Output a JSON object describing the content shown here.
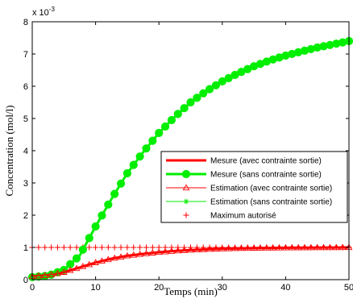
{
  "chart_data": {
    "type": "line",
    "xlabel": "Temps (min)",
    "ylabel": "Concentration (mol/l)",
    "y_exponent_label": "x 10",
    "y_exponent_power": "-3",
    "xlim": [
      0,
      50
    ],
    "ylim": [
      0,
      8
    ],
    "xticks": [
      "0",
      "10",
      "20",
      "30",
      "40",
      "50"
    ],
    "yticks": [
      "0",
      "1",
      "2",
      "3",
      "4",
      "5",
      "6",
      "7",
      "8"
    ],
    "grid": false,
    "legend_position": "right",
    "series": [
      {
        "name": "Mesure (avec contrainte sortie)",
        "color": "#ff0000",
        "style": "line-thick",
        "marker": "none",
        "x": [
          0,
          2.5,
          5,
          7.5,
          10,
          12.5,
          15,
          17.5,
          20,
          22.5,
          25,
          27.5,
          30,
          32.5,
          35,
          37.5,
          40,
          42.5,
          45,
          47.5,
          50
        ],
        "y": [
          0.1,
          0.14,
          0.23,
          0.38,
          0.53,
          0.65,
          0.74,
          0.8,
          0.85,
          0.89,
          0.92,
          0.94,
          0.96,
          0.97,
          0.98,
          0.985,
          0.99,
          0.993,
          0.996,
          0.998,
          1.0
        ]
      },
      {
        "name": "Mesure (sans contrainte sortie)",
        "color": "#00ee00",
        "style": "line-thick",
        "marker": "filled-circle",
        "x": [
          0,
          2.5,
          5,
          7.5,
          10,
          12.5,
          15,
          17.5,
          20,
          22.5,
          25,
          27.5,
          30,
          32.5,
          35,
          37.5,
          40,
          42.5,
          45,
          47.5,
          50
        ],
        "y": [
          0.08,
          0.12,
          0.3,
          0.75,
          1.65,
          2.5,
          3.3,
          3.95,
          4.55,
          5.05,
          5.5,
          5.85,
          6.15,
          6.4,
          6.62,
          6.8,
          6.95,
          7.08,
          7.2,
          7.3,
          7.4
        ]
      },
      {
        "name": "Estimation (avec contrainte sortie)",
        "color": "#ff0000",
        "style": "line-thin",
        "marker": "triangle",
        "x": [
          0,
          2.5,
          5,
          7.5,
          10,
          12.5,
          15,
          17.5,
          20,
          22.5,
          25,
          27.5,
          30,
          32.5,
          35,
          37.5,
          40,
          42.5,
          45,
          47.5,
          50
        ],
        "y": [
          0.1,
          0.14,
          0.23,
          0.38,
          0.53,
          0.65,
          0.74,
          0.8,
          0.85,
          0.89,
          0.92,
          0.94,
          0.96,
          0.97,
          0.98,
          0.985,
          0.99,
          0.993,
          0.996,
          0.998,
          1.0
        ]
      },
      {
        "name": "Estimation (sans contrainte sortie)",
        "color": "#00ee00",
        "style": "line-thin",
        "marker": "star",
        "x": [
          0,
          2.5,
          5,
          7.5,
          10,
          12.5,
          15,
          17.5,
          20,
          22.5,
          25,
          27.5,
          30,
          32.5,
          35,
          37.5,
          40,
          42.5,
          45,
          47.5,
          50
        ],
        "y": [
          0.08,
          0.12,
          0.3,
          0.75,
          1.65,
          2.5,
          3.3,
          3.95,
          4.55,
          5.05,
          5.5,
          5.85,
          6.15,
          6.4,
          6.62,
          6.8,
          6.95,
          7.08,
          7.2,
          7.3,
          7.4
        ]
      },
      {
        "name": "Maximum autorisé",
        "color": "#ff0000",
        "style": "none",
        "marker": "plus",
        "x": [
          0,
          2.5,
          5,
          7.5,
          10,
          12.5,
          15,
          17.5,
          20,
          22.5,
          25,
          27.5,
          30,
          32.5,
          35,
          37.5,
          40,
          42.5,
          45,
          47.5,
          50
        ],
        "y": [
          1,
          1,
          1,
          1,
          1,
          1,
          1,
          1,
          1,
          1,
          1,
          1,
          1,
          1,
          1,
          1,
          1,
          1,
          1,
          1,
          1
        ]
      }
    ]
  }
}
